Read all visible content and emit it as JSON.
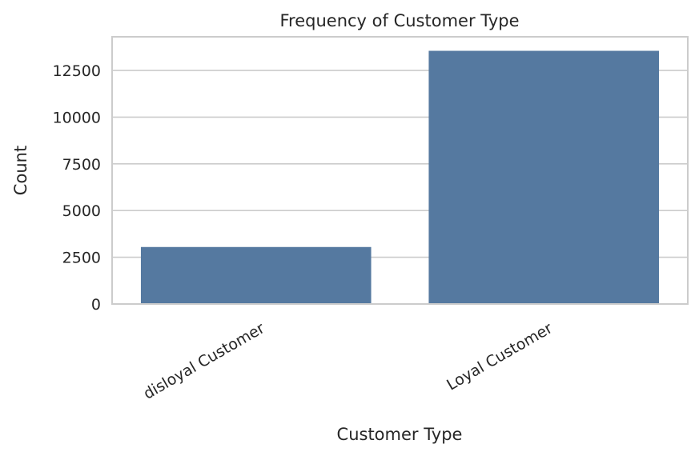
{
  "chart_data": {
    "type": "bar",
    "title": "Frequency of Customer Type",
    "xlabel": "Customer Type",
    "ylabel": "Count",
    "categories": [
      "disloyal Customer",
      "Loyal Customer"
    ],
    "values": [
      3050,
      13550
    ],
    "ylim": [
      0,
      14300
    ],
    "yticks": [
      0,
      2500,
      5000,
      7500,
      10000,
      12500
    ],
    "grid": true,
    "bar_color": "#5579a0",
    "grid_color": "#cccccc",
    "text_color": "#262626"
  }
}
